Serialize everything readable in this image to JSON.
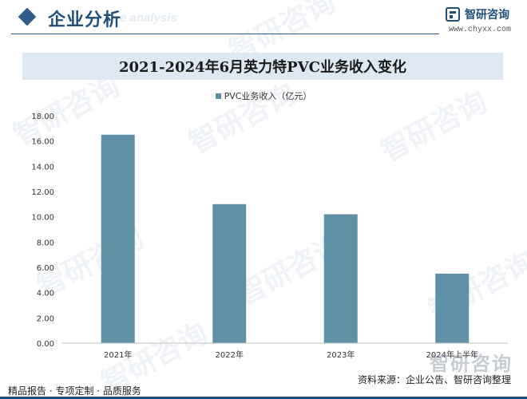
{
  "header": {
    "section_title": "企业分析",
    "section_en": "e analysis",
    "brand_name": "智研咨询",
    "brand_url": "www.chyxx.com"
  },
  "watermark_text": "智研咨询",
  "chart_data": {
    "type": "bar",
    "title": "2021-2024年6月英力特PVC业务收入变化",
    "categories": [
      "2021年",
      "2022年",
      "2023年",
      "2024年上半年"
    ],
    "series": [
      {
        "name": "PVC业务收入（亿元）",
        "values": [
          16.5,
          11.0,
          10.2,
          5.5
        ],
        "color": "#5f91a6"
      }
    ],
    "yticks": [
      "0.00",
      "2.00",
      "4.00",
      "6.00",
      "8.00",
      "10.00",
      "12.00",
      "14.00",
      "16.00",
      "18.00"
    ],
    "ylim": [
      0,
      18
    ],
    "grid": false,
    "legend_position": "top-center"
  },
  "footer": {
    "left_text": "精品报告 · 专项定制 · 品质服务",
    "source_text": "资料来源：企业公告、智研咨询整理",
    "brand_mark": "智研咨询"
  }
}
